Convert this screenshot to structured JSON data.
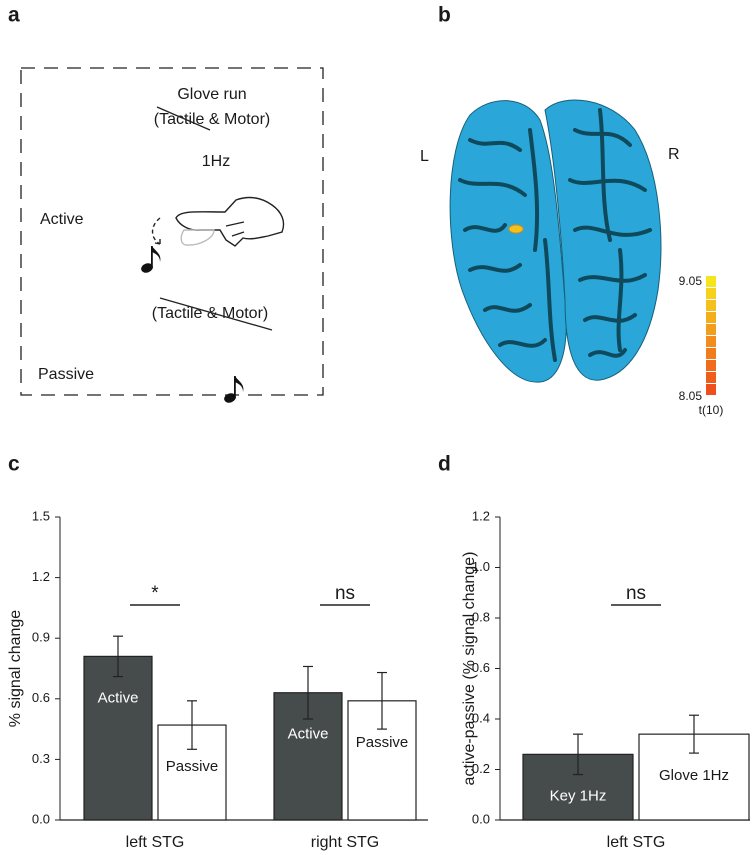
{
  "panel_labels": [
    "a",
    "b",
    "c",
    "d"
  ],
  "panel_a": {
    "run": "Glove run",
    "active_stimulus": "(Tactile & Motor)",
    "rate": "1Hz",
    "active_label": "Active",
    "passive_stimulus": "(Tactile & Motor)",
    "passive_label": "Passive"
  },
  "panel_b": {
    "left_label": "L",
    "right_label": "R",
    "colorbar": {
      "max": 9.05,
      "min": 8.05,
      "label": "t(10)"
    }
  },
  "chart_data": [
    {
      "type": "bar",
      "y_label": "% signal change",
      "categories": [
        "left STG",
        "right STG"
      ],
      "annotations": [
        "*",
        "ns"
      ],
      "series": [
        {
          "name": "Active",
          "color": "#464b4b",
          "values": [
            0.81,
            0.63
          ],
          "errors": [
            0.1,
            0.13
          ]
        },
        {
          "name": "Passive",
          "color": "#ffffff",
          "values": [
            0.47,
            0.59
          ],
          "errors": [
            0.12,
            0.14
          ]
        }
      ],
      "ylim": [
        0,
        1.5
      ],
      "yticks": [
        {
          "value": 0,
          "label": "0.0"
        },
        0.3,
        0.6,
        0.9,
        1.2,
        1.5
      ]
    },
    {
      "type": "bar",
      "y_label": "active-passive (% signal change)",
      "categories": [
        "left STG"
      ],
      "annotations": [
        "ns"
      ],
      "series": [
        {
          "name": "Key 1Hz",
          "color": "#464b4b",
          "values": [
            0.26
          ],
          "errors": [
            0.08
          ]
        },
        {
          "name": "Glove 1Hz",
          "color": "#ffffff",
          "values": [
            0.34
          ],
          "errors": [
            0.075
          ]
        }
      ],
      "ylim": [
        0,
        1.2
      ],
      "yticks": [
        {
          "value": 0,
          "label": "0.0"
        },
        0.2,
        0.4,
        0.6,
        0.8,
        {
          "value": 1,
          "label": "1.0"
        },
        1.2
      ]
    }
  ]
}
